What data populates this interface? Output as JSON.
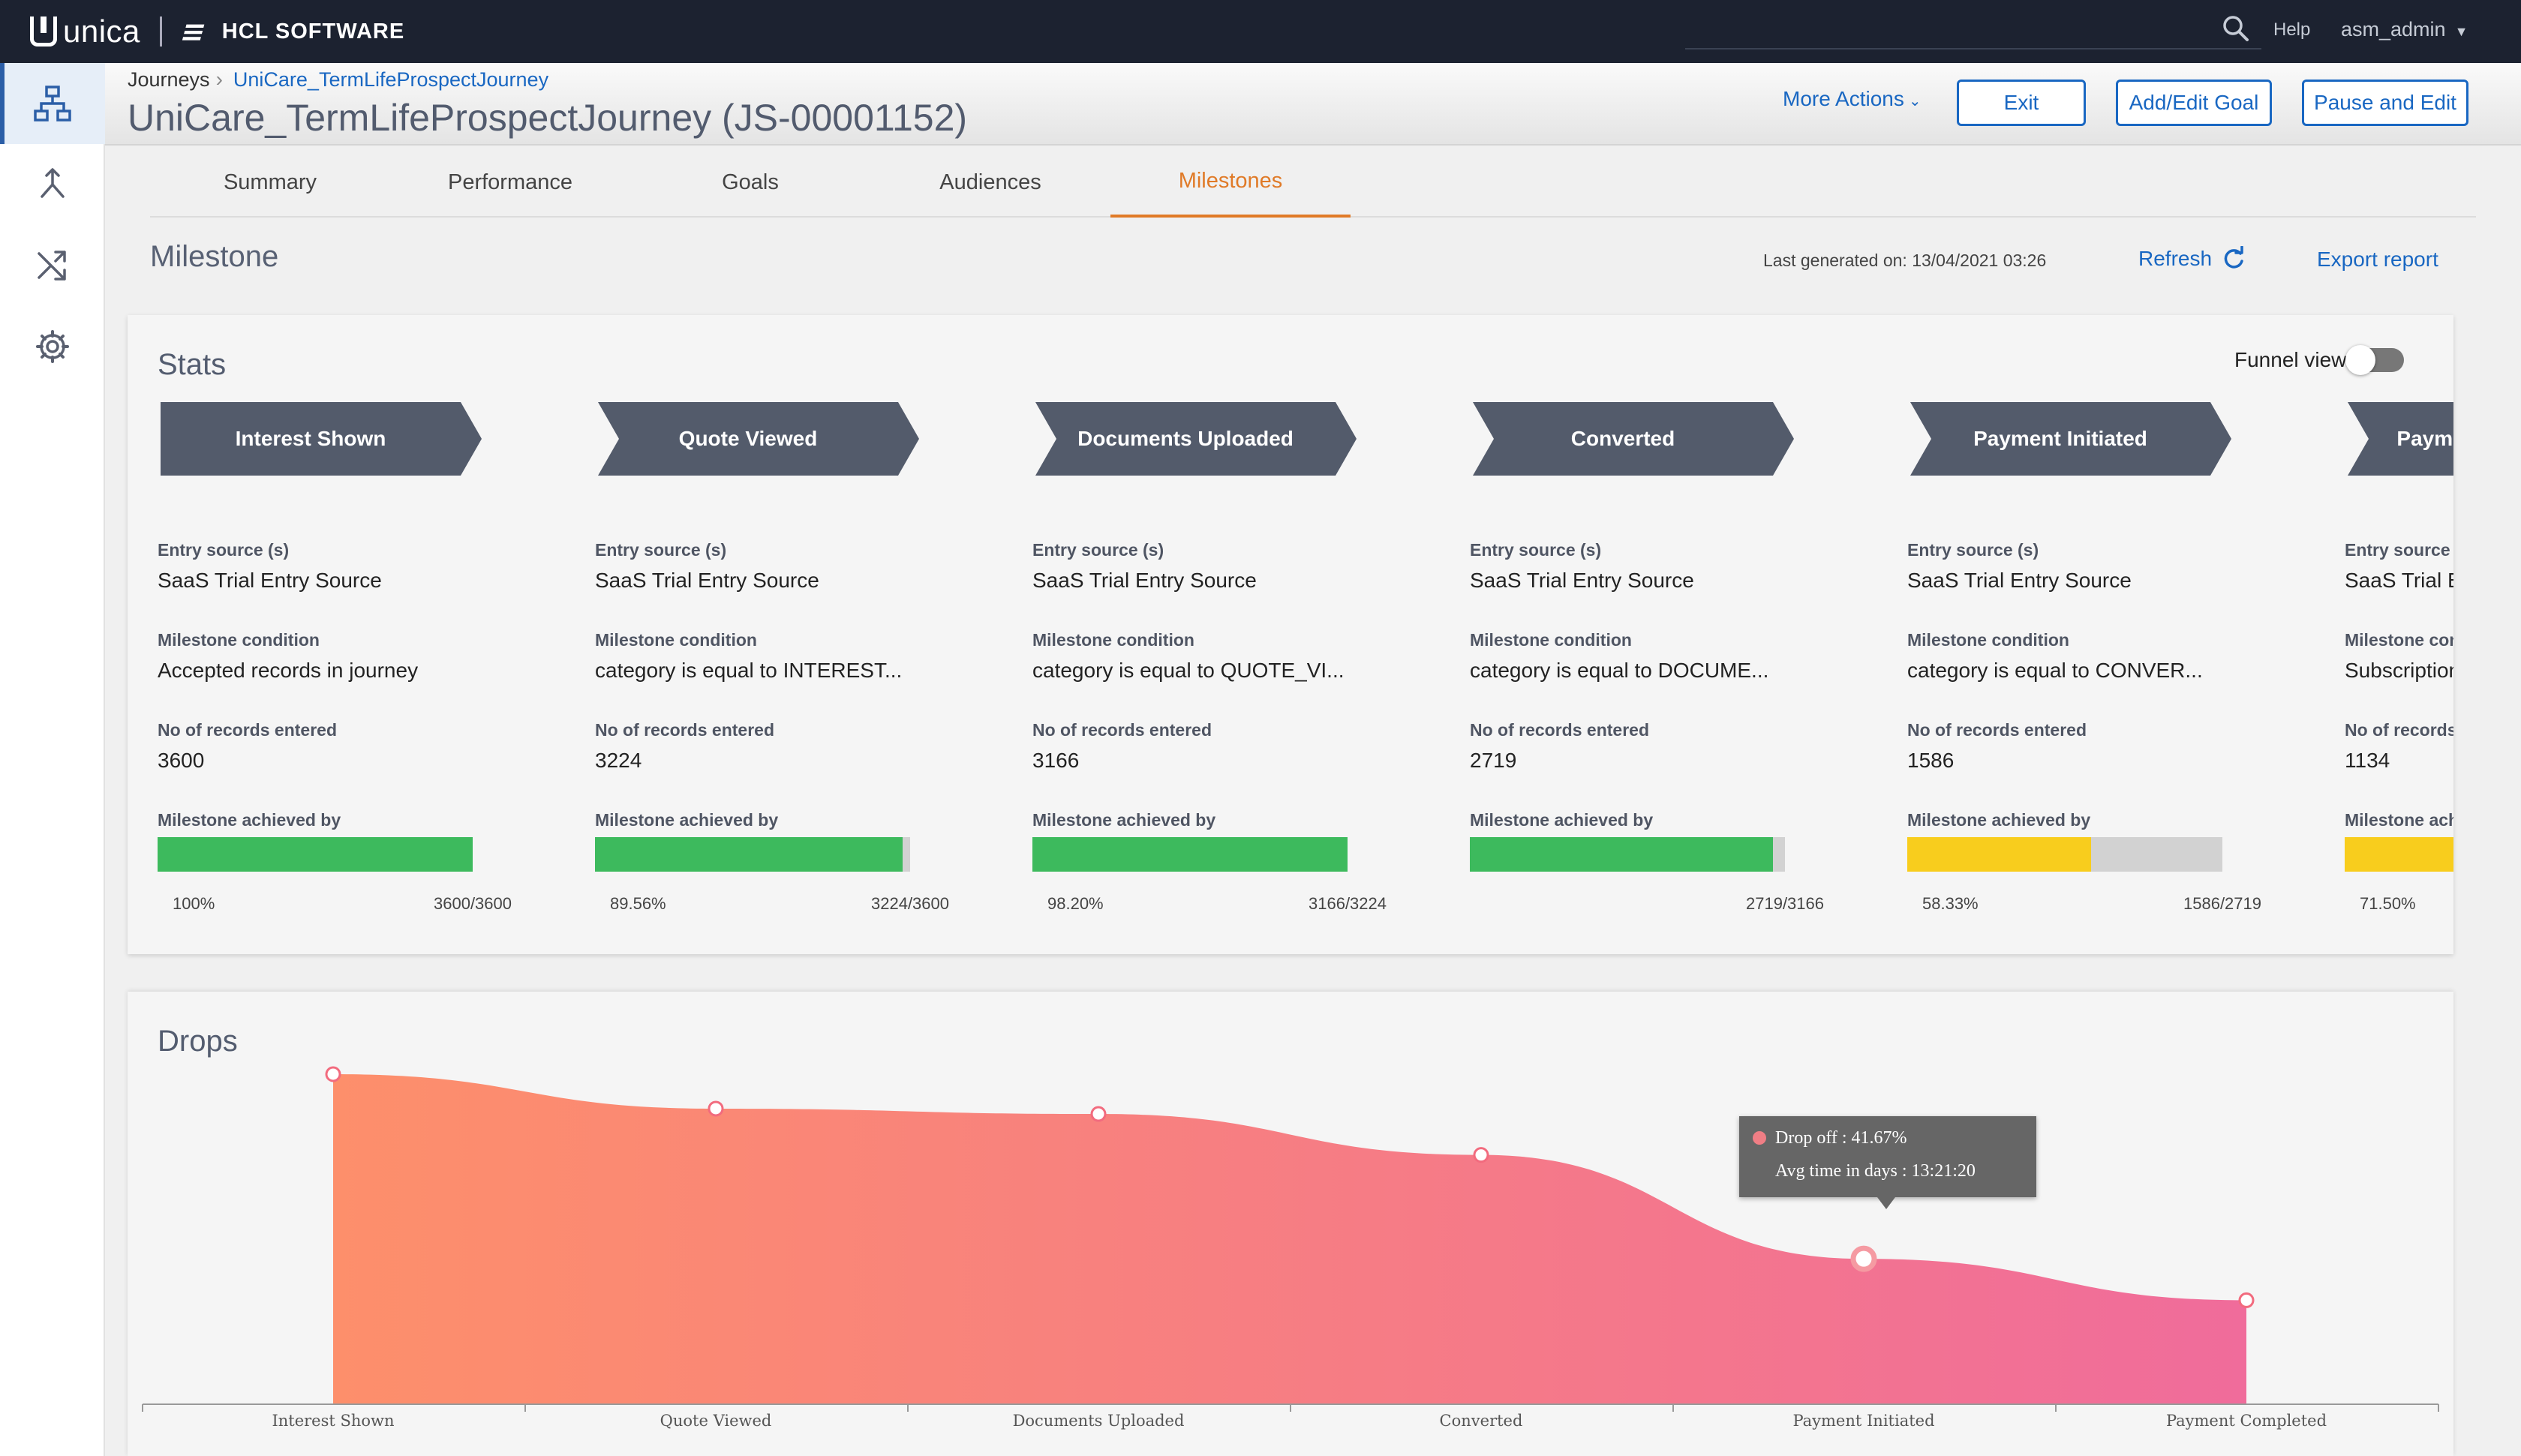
{
  "topbar": {
    "brand": "unica",
    "company": "HCL SOFTWARE",
    "help": "Help",
    "user": "asm_admin"
  },
  "breadcrumb": {
    "parent": "Journeys",
    "current": "UniCare_TermLifeProspectJourney"
  },
  "page_title": "UniCare_TermLifeProspectJourney (JS-00001152)",
  "header_actions": {
    "more_actions": "More Actions",
    "exit": "Exit",
    "add_edit_goal": "Add/Edit Goal",
    "pause_and_edit": "Pause and Edit"
  },
  "tabs": [
    {
      "label": "Summary"
    },
    {
      "label": "Performance"
    },
    {
      "label": "Goals"
    },
    {
      "label": "Audiences"
    },
    {
      "label": "Milestones",
      "active": true
    }
  ],
  "milestone": {
    "title": "Milestone",
    "last_generated": "Last generated on: 13/04/2021 03:26",
    "refresh": "Refresh",
    "export": "Export report"
  },
  "stats": {
    "title": "Stats",
    "funnel_view_label": "Funnel view",
    "funnel_view_on": false,
    "field_labels": {
      "entry_source": "Entry source (s)",
      "condition": "Milestone condition",
      "records": "No of records entered",
      "achieved": "Milestone achieved by"
    },
    "stages": [
      {
        "name": "Interest Shown",
        "entry_source": "SaaS Trial Entry Source",
        "condition": "Accepted records in journey",
        "records": "3600",
        "percent_label": "100%",
        "ratio": "3600/3600",
        "fill": 1.0,
        "color": "#3dba5d"
      },
      {
        "name": "Quote Viewed",
        "entry_source": "SaaS Trial Entry Source",
        "condition": "category is equal to INTEREST...",
        "records": "3224",
        "percent_label": "89.56%",
        "ratio": "3224/3600",
        "fill": 0.9756,
        "color": "#3dba5d"
      },
      {
        "name": "Documents Uploaded",
        "entry_source": "SaaS Trial Entry Source",
        "condition": "category is equal to QUOTE_VI...",
        "records": "3166",
        "percent_label": "98.20%",
        "ratio": "3166/3224",
        "fill": 1.0,
        "color": "#3dba5d"
      },
      {
        "name": "Converted",
        "entry_source": "SaaS Trial Entry Source",
        "condition": "category is equal to DOCUME...",
        "records": "2719",
        "percent_label": "",
        "ratio": "2719/3166",
        "fill": 0.9619,
        "color": "#3dba5d"
      },
      {
        "name": "Payment Initiated",
        "entry_source": "SaaS Trial Entry Source",
        "condition": "category is equal to CONVER...",
        "records": "1586",
        "percent_label": "58.33%",
        "ratio": "1586/2719",
        "fill": 0.5833,
        "color": "#f8cd1d"
      },
      {
        "name": "Payment Completed",
        "entry_source": "SaaS Trial Entry Source",
        "condition": "Subscription",
        "records": "1134",
        "percent_label": "71.50%",
        "ratio": "",
        "fill": 0.715,
        "color": "#f8cd1d"
      }
    ]
  },
  "drops": {
    "title": "Drops",
    "tooltip": {
      "drop_off": "Drop off : 41.67%",
      "avg_time": "Avg time in days : 13:21:20"
    }
  },
  "chart_data": {
    "type": "area",
    "title": "Drops",
    "categories": [
      "Interest Shown",
      "Quote Viewed",
      "Documents Uploaded",
      "Converted",
      "Payment Initiated",
      "Payment Completed"
    ],
    "values": [
      3600,
      3224,
      3166,
      2719,
      1586,
      1134
    ],
    "ylim": [
      0,
      3600
    ],
    "grid": false,
    "colors": {
      "start": "#fd8f6b",
      "end": "#f06c9b",
      "line": "#f26b7e"
    }
  }
}
